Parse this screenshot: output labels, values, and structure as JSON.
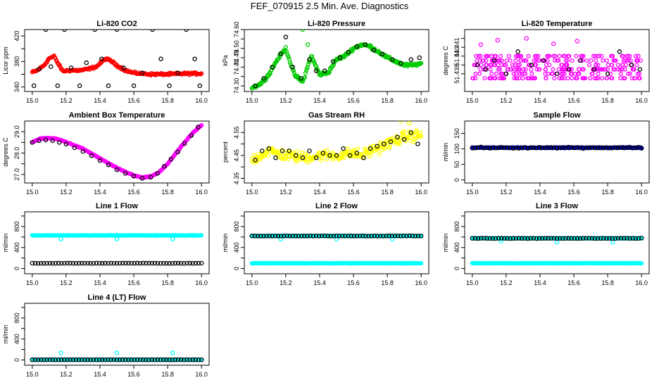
{
  "page_title": "FEF_070915  2.5 Min. Ave. Diagnostics",
  "chart_data": [
    {
      "id": "co2",
      "type": "scatter",
      "title": "Li-820 CO2",
      "ylabel": "Licor ppm",
      "ylim": [
        333,
        430
      ],
      "yticks": [
        340,
        360,
        380,
        400,
        420
      ],
      "ytick_labels": [
        "340",
        "",
        "380",
        "",
        "420"
      ],
      "xlim": [
        14.98,
        16.02
      ],
      "xticks": [
        15.0,
        15.2,
        15.4,
        15.6,
        15.8,
        16.0
      ],
      "series_color": "#ff0000",
      "marker_color": "#000000",
      "noise": 2.5,
      "outliers": [],
      "curve": [
        [
          15.0,
          363
        ],
        [
          15.03,
          366
        ],
        [
          15.07,
          374
        ],
        [
          15.1,
          385
        ],
        [
          15.13,
          388
        ],
        [
          15.15,
          378
        ],
        [
          15.18,
          365
        ],
        [
          15.22,
          366
        ],
        [
          15.28,
          366
        ],
        [
          15.33,
          368
        ],
        [
          15.38,
          372
        ],
        [
          15.43,
          384
        ],
        [
          15.46,
          382
        ],
        [
          15.5,
          374
        ],
        [
          15.55,
          366
        ],
        [
          15.6,
          362
        ],
        [
          15.7,
          360
        ],
        [
          15.8,
          360
        ],
        [
          15.9,
          361
        ],
        [
          16.0,
          361
        ]
      ],
      "markers": [
        [
          15.01,
          342
        ],
        [
          15.04,
          368
        ],
        [
          15.08,
          430
        ],
        [
          15.11,
          372
        ],
        [
          15.15,
          342
        ],
        [
          15.19,
          430
        ],
        [
          15.23,
          370
        ],
        [
          15.28,
          342
        ],
        [
          15.32,
          378
        ],
        [
          15.37,
          430
        ],
        [
          15.41,
          384
        ],
        [
          15.45,
          342
        ],
        [
          15.5,
          430
        ],
        [
          15.54,
          370
        ],
        [
          15.6,
          342
        ],
        [
          15.65,
          362
        ],
        [
          15.71,
          430
        ],
        [
          15.76,
          384
        ],
        [
          15.81,
          342
        ],
        [
          15.86,
          362
        ],
        [
          15.91,
          430
        ],
        [
          15.96,
          384
        ],
        [
          15.99,
          342
        ]
      ]
    },
    {
      "id": "pressure",
      "type": "scatter",
      "title": "Li-820 Pressure",
      "ylabel": "kPa",
      "ylim": [
        74.27,
        74.6
      ],
      "yticks": [
        74.3,
        74.35,
        74.4,
        74.45,
        74.5,
        74.55,
        74.6
      ],
      "ytick_labels": [
        "74.30",
        "",
        "74.40",
        "74.45",
        "74.50",
        "",
        "74.60"
      ],
      "xlim": [
        14.98,
        16.02
      ],
      "xticks": [
        15.0,
        15.2,
        15.4,
        15.6,
        15.8,
        16.0
      ],
      "series_color": "#00cc00",
      "marker_color": "#000000",
      "noise": 0.012,
      "outliers": [
        [
          15.29,
          74.62
        ],
        [
          15.3,
          74.6
        ],
        [
          15.33,
          74.52
        ]
      ],
      "curve": [
        [
          15.0,
          74.29
        ],
        [
          15.05,
          74.31
        ],
        [
          15.1,
          74.36
        ],
        [
          15.15,
          74.44
        ],
        [
          15.2,
          74.5
        ],
        [
          15.25,
          74.36
        ],
        [
          15.3,
          74.32
        ],
        [
          15.35,
          74.46
        ],
        [
          15.4,
          74.36
        ],
        [
          15.45,
          74.37
        ],
        [
          15.5,
          74.44
        ],
        [
          15.55,
          74.46
        ],
        [
          15.6,
          74.5
        ],
        [
          15.65,
          74.52
        ],
        [
          15.7,
          74.51
        ],
        [
          15.75,
          74.48
        ],
        [
          15.8,
          74.45
        ],
        [
          15.85,
          74.43
        ],
        [
          15.9,
          74.41
        ],
        [
          15.95,
          74.41
        ],
        [
          16.0,
          74.42
        ]
      ],
      "markers": [
        [
          15.02,
          74.3
        ],
        [
          15.07,
          74.34
        ],
        [
          15.12,
          74.4
        ],
        [
          15.17,
          74.47
        ],
        [
          15.2,
          74.56
        ],
        [
          15.24,
          74.4
        ],
        [
          15.29,
          74.34
        ],
        [
          15.34,
          74.44
        ],
        [
          15.38,
          74.38
        ],
        [
          15.43,
          74.38
        ],
        [
          15.48,
          74.43
        ],
        [
          15.52,
          74.45
        ],
        [
          15.57,
          74.48
        ],
        [
          15.62,
          74.51
        ],
        [
          15.67,
          74.52
        ],
        [
          15.72,
          74.49
        ],
        [
          15.77,
          74.47
        ],
        [
          15.83,
          74.44
        ],
        [
          15.88,
          74.42
        ],
        [
          15.94,
          74.44
        ],
        [
          15.99,
          74.45
        ]
      ]
    },
    {
      "id": "temperature",
      "type": "scatter",
      "title": "Li-820 Temperature",
      "ylabel": "degrees C",
      "ylim": [
        51.436,
        51.443
      ],
      "yticks": [
        51.438,
        51.439,
        51.44,
        51.441,
        51.442
      ],
      "ytick_labels": [
        "51.438",
        "",
        "51.440",
        "51.441",
        ""
      ],
      "xlim": [
        14.98,
        16.02
      ],
      "xticks": [
        15.0,
        15.2,
        15.4,
        15.6,
        15.8,
        16.0
      ],
      "series_color": "#ff00ff",
      "marker_color": "#000000",
      "dense_levels": [
        51.4375,
        51.438,
        51.4385,
        51.439,
        51.4395,
        51.44
      ],
      "outliers": [
        [
          15.15,
          51.4418
        ],
        [
          15.32,
          51.442
        ],
        [
          15.62,
          51.4417
        ],
        [
          15.05,
          51.4413
        ],
        [
          15.48,
          51.4414
        ]
      ],
      "markers": [
        [
          15.03,
          51.439
        ],
        [
          15.08,
          51.4385
        ],
        [
          15.13,
          51.4395
        ],
        [
          15.2,
          51.438
        ],
        [
          15.27,
          51.4405
        ],
        [
          15.35,
          51.439
        ],
        [
          15.42,
          51.4395
        ],
        [
          15.5,
          51.438
        ],
        [
          15.57,
          51.4385
        ],
        [
          15.64,
          51.4395
        ],
        [
          15.72,
          51.4385
        ],
        [
          15.8,
          51.438
        ],
        [
          15.87,
          51.4405
        ],
        [
          15.94,
          51.439
        ],
        [
          15.99,
          51.4385
        ]
      ]
    },
    {
      "id": "ambient",
      "type": "scatter",
      "title": "Ambient Box Temperature",
      "ylabel": "degrees C",
      "ylim": [
        26.6,
        29.5
      ],
      "yticks": [
        27.0,
        27.5,
        28.0,
        28.5,
        29.0
      ],
      "ytick_labels": [
        "27.0",
        "",
        "28.0",
        "",
        "29.0"
      ],
      "xlim": [
        14.98,
        16.02
      ],
      "xticks": [
        15.0,
        15.2,
        15.4,
        15.6,
        15.8,
        16.0
      ],
      "series_color": "#ff00ff",
      "marker_color": "#000000",
      "noise": 0.03,
      "outliers": [],
      "curve": [
        [
          15.0,
          28.5
        ],
        [
          15.05,
          28.68
        ],
        [
          15.1,
          28.7
        ],
        [
          15.15,
          28.65
        ],
        [
          15.2,
          28.52
        ],
        [
          15.3,
          28.2
        ],
        [
          15.4,
          27.75
        ],
        [
          15.5,
          27.3
        ],
        [
          15.6,
          26.95
        ],
        [
          15.65,
          26.85
        ],
        [
          15.7,
          26.9
        ],
        [
          15.75,
          27.1
        ],
        [
          15.8,
          27.5
        ],
        [
          15.85,
          28.0
        ],
        [
          15.9,
          28.5
        ],
        [
          15.95,
          28.95
        ],
        [
          16.0,
          29.3
        ]
      ],
      "markers": [
        [
          15.0,
          28.5
        ],
        [
          15.04,
          28.58
        ],
        [
          15.08,
          28.62
        ],
        [
          15.12,
          28.58
        ],
        [
          15.16,
          28.5
        ],
        [
          15.2,
          28.42
        ],
        [
          15.25,
          28.25
        ],
        [
          15.3,
          28.08
        ],
        [
          15.35,
          27.88
        ],
        [
          15.4,
          27.65
        ],
        [
          15.45,
          27.45
        ],
        [
          15.5,
          27.22
        ],
        [
          15.55,
          27.05
        ],
        [
          15.6,
          26.92
        ],
        [
          15.65,
          26.82
        ],
        [
          15.7,
          26.87
        ],
        [
          15.74,
          27.05
        ],
        [
          15.78,
          27.38
        ],
        [
          15.82,
          27.72
        ],
        [
          15.86,
          28.05
        ],
        [
          15.9,
          28.45
        ],
        [
          15.94,
          28.82
        ],
        [
          15.98,
          29.22
        ]
      ]
    },
    {
      "id": "rh",
      "type": "scatter",
      "title": "Gas Stream RH",
      "ylabel": "percent",
      "ylim": [
        4.33,
        4.6
      ],
      "yticks": [
        4.35,
        4.4,
        4.45,
        4.5,
        4.55
      ],
      "ytick_labels": [
        "4.35",
        "",
        "4.45",
        "",
        "4.55"
      ],
      "xlim": [
        14.98,
        16.02
      ],
      "xticks": [
        15.0,
        15.2,
        15.4,
        15.6,
        15.8,
        16.0
      ],
      "series_color": "#ffff00",
      "marker_color": "#000000",
      "noise": 0.035,
      "outliers": [
        [
          15.31,
          4.32
        ],
        [
          15.88,
          4.6
        ],
        [
          15.93,
          4.59
        ]
      ],
      "curve": [
        [
          15.0,
          4.43
        ],
        [
          15.1,
          4.47
        ],
        [
          15.2,
          4.45
        ],
        [
          15.3,
          4.44
        ],
        [
          15.4,
          4.45
        ],
        [
          15.5,
          4.45
        ],
        [
          15.6,
          4.46
        ],
        [
          15.65,
          4.45
        ],
        [
          15.7,
          4.47
        ],
        [
          15.8,
          4.5
        ],
        [
          15.9,
          4.53
        ],
        [
          16.0,
          4.54
        ]
      ],
      "markers": [
        [
          15.02,
          4.43
        ],
        [
          15.06,
          4.47
        ],
        [
          15.1,
          4.48
        ],
        [
          15.14,
          4.44
        ],
        [
          15.18,
          4.47
        ],
        [
          15.22,
          4.47
        ],
        [
          15.26,
          4.45
        ],
        [
          15.3,
          4.44
        ],
        [
          15.34,
          4.47
        ],
        [
          15.38,
          4.44
        ],
        [
          15.42,
          4.46
        ],
        [
          15.46,
          4.45
        ],
        [
          15.5,
          4.45
        ],
        [
          15.54,
          4.48
        ],
        [
          15.58,
          4.45
        ],
        [
          15.62,
          4.46
        ],
        [
          15.66,
          4.44
        ],
        [
          15.7,
          4.48
        ],
        [
          15.74,
          4.49
        ],
        [
          15.78,
          4.5
        ],
        [
          15.82,
          4.51
        ],
        [
          15.86,
          4.53
        ],
        [
          15.9,
          4.52
        ],
        [
          15.94,
          4.55
        ],
        [
          15.98,
          4.5
        ]
      ]
    },
    {
      "id": "sample_flow",
      "type": "scatter",
      "title": "Sample Flow",
      "ylabel": "ml/min",
      "ylim": [
        -10,
        190
      ],
      "yticks": [
        0,
        50,
        100,
        150
      ],
      "ytick_labels": [
        "0",
        "50",
        "100",
        "150"
      ],
      "xlim": [
        14.98,
        16.02
      ],
      "xticks": [
        15.0,
        15.2,
        15.4,
        15.6,
        15.8,
        16.0
      ],
      "series_color": "#0000cc",
      "marker_color": "#000000",
      "flat": true,
      "series_level": 104,
      "series_noise": 2,
      "marker_level": 104,
      "marker_noise": 3,
      "outliers": []
    },
    {
      "id": "line1",
      "type": "scatter",
      "title": "Line 1 Flow",
      "ylabel": "ml/min",
      "ylim": [
        -100,
        1080
      ],
      "yticks": [
        0,
        200,
        400,
        600,
        800,
        1000
      ],
      "ytick_labels": [
        "0",
        "",
        "400",
        "",
        "800",
        ""
      ],
      "xlim": [
        14.98,
        16.02
      ],
      "xticks": [
        15.0,
        15.2,
        15.4,
        15.6,
        15.8,
        16.0
      ],
      "series_color": "#00ffff",
      "marker_color": "#000000",
      "flat": true,
      "series_level": 630,
      "series_noise": 8,
      "marker_level": 100,
      "marker_noise": 4,
      "outliers": [
        [
          15.17,
          560
        ],
        [
          15.5,
          560
        ],
        [
          15.83,
          560
        ]
      ]
    },
    {
      "id": "line2",
      "type": "scatter",
      "title": "Line 2 Flow",
      "ylabel": "ml/min",
      "ylim": [
        -100,
        1080
      ],
      "yticks": [
        0,
        200,
        400,
        600,
        800,
        1000
      ],
      "ytick_labels": [
        "0",
        "",
        "400",
        "",
        "800",
        ""
      ],
      "xlim": [
        14.98,
        16.02
      ],
      "xticks": [
        15.0,
        15.2,
        15.4,
        15.6,
        15.8,
        16.0
      ],
      "series_color": "#00ffff",
      "marker_color": "#000000",
      "flat": true,
      "series_level": 100,
      "series_noise": 6,
      "marker_level": 620,
      "marker_noise": 6,
      "marker_series_overlay": true,
      "outliers": [
        [
          15.17,
          560
        ],
        [
          15.5,
          560
        ],
        [
          15.83,
          560
        ]
      ]
    },
    {
      "id": "line3",
      "type": "scatter",
      "title": "Line 3 Flow",
      "ylabel": "ml/min",
      "ylim": [
        -100,
        1080
      ],
      "yticks": [
        0,
        200,
        400,
        600,
        800,
        1000
      ],
      "ytick_labels": [
        "0",
        "",
        "400",
        "",
        "800",
        ""
      ],
      "xlim": [
        14.98,
        16.02
      ],
      "xticks": [
        15.0,
        15.2,
        15.4,
        15.6,
        15.8,
        16.0
      ],
      "series_color": "#00ffff",
      "marker_color": "#000000",
      "flat": true,
      "series_level": 100,
      "series_noise": 6,
      "marker_level": 575,
      "marker_noise": 6,
      "marker_series_overlay": true,
      "outliers": [
        [
          15.17,
          520
        ],
        [
          15.5,
          500
        ],
        [
          15.83,
          500
        ]
      ]
    },
    {
      "id": "line4",
      "type": "scatter",
      "title": "Line 4 (LT) Flow",
      "ylabel": "ml/min",
      "ylim": [
        -100,
        1080
      ],
      "yticks": [
        0,
        200,
        400,
        600,
        800,
        1000
      ],
      "ytick_labels": [
        "0",
        "",
        "400",
        "",
        "800",
        ""
      ],
      "xlim": [
        14.98,
        16.02
      ],
      "xticks": [
        15.0,
        15.2,
        15.4,
        15.6,
        15.8,
        16.0
      ],
      "series_color": "#00ffff",
      "marker_color": "#000000",
      "flat": true,
      "series_level": 5,
      "series_noise": 2,
      "marker_level": 5,
      "marker_noise": 2,
      "outliers": [
        [
          15.17,
          135
        ],
        [
          15.5,
          135
        ],
        [
          15.83,
          135
        ]
      ]
    }
  ]
}
